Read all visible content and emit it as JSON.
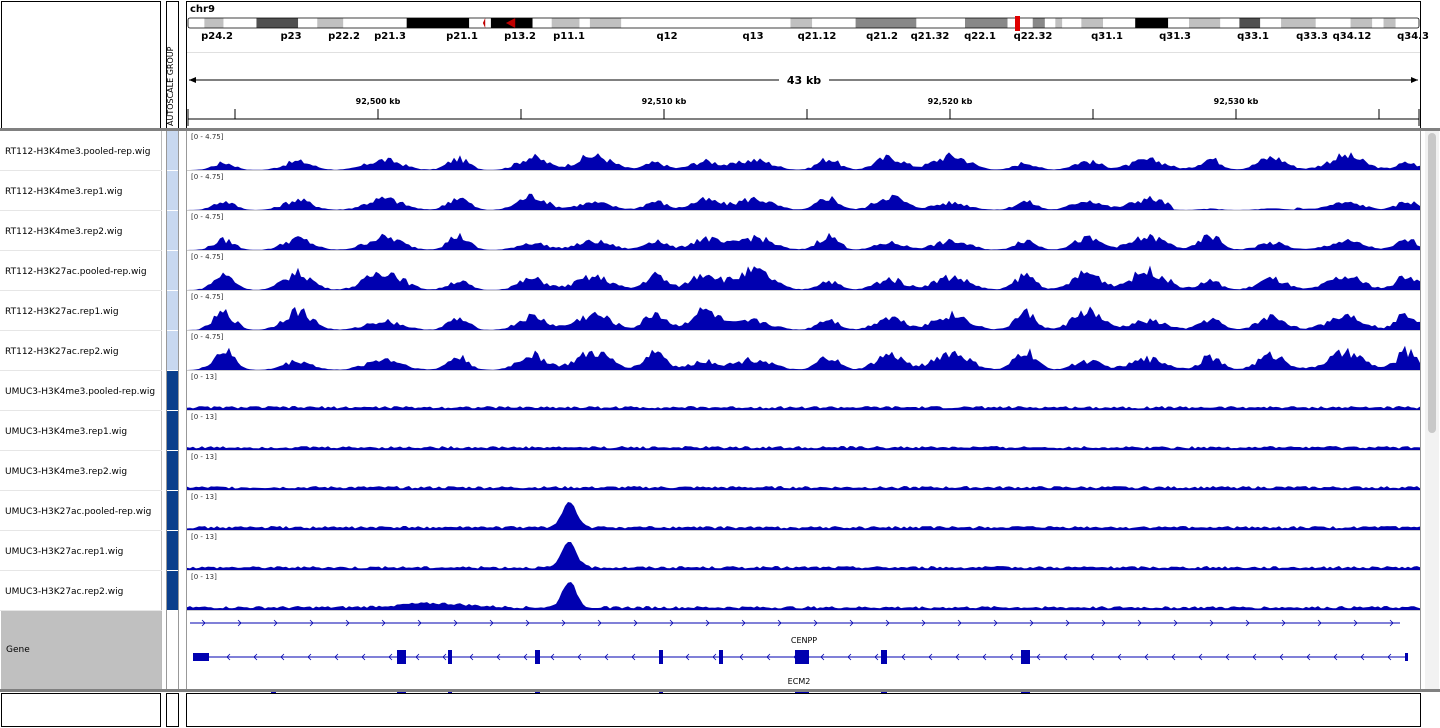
{
  "header": {
    "chromosome": "chr9",
    "autoscale_label": "AUTOSCALE GROUP",
    "span_label": "43 kb",
    "ruler_ticks": [
      "92,500 kb",
      "92,510 kb",
      "92,520 kb",
      "92,530 kb"
    ]
  },
  "ideogram": {
    "bands": [
      {
        "label": "p24.2",
        "stain": "gpos25"
      },
      {
        "label": "p23",
        "stain": "gpos75"
      },
      {
        "label": "p22.2",
        "stain": "gpos25"
      },
      {
        "label": "p21.3",
        "stain": "gpos100"
      },
      {
        "label": "p21.1",
        "stain": "gpos100"
      },
      {
        "label": "p13.2",
        "stain": "gpos25"
      },
      {
        "label": "p11.1",
        "stain": "acen"
      },
      {
        "label": "q12",
        "stain": "gneg"
      },
      {
        "label": "q13",
        "stain": "gpos25"
      },
      {
        "label": "q21.12",
        "stain": "gpos50"
      },
      {
        "label": "q21.2",
        "stain": "gpos50"
      },
      {
        "label": "q21.32",
        "stain": "gpos50"
      },
      {
        "label": "q22.1",
        "stain": "gpos50"
      },
      {
        "label": "q22.32",
        "stain": "gpos25"
      },
      {
        "label": "q31.1",
        "stain": "gpos100"
      },
      {
        "label": "q31.3",
        "stain": "gpos25"
      },
      {
        "label": "q33.1",
        "stain": "gpos75"
      },
      {
        "label": "q33.3",
        "stain": "gpos25"
      },
      {
        "label": "q34.12",
        "stain": "gpos25"
      },
      {
        "label": "q34.3",
        "stain": "gneg"
      }
    ],
    "current_region_color": "#e00000"
  },
  "tracks": [
    {
      "name": "RT112-H3K4me3.pooled-rep.wig",
      "range": "[0 - 4.75]",
      "group": "RT112"
    },
    {
      "name": "RT112-H3K4me3.rep1.wig",
      "range": "[0 - 4.75]",
      "group": "RT112"
    },
    {
      "name": "RT112-H3K4me3.rep2.wig",
      "range": "[0 - 4.75]",
      "group": "RT112"
    },
    {
      "name": "RT112-H3K27ac.pooled-rep.wig",
      "range": "[0 - 4.75]",
      "group": "RT112"
    },
    {
      "name": "RT112-H3K27ac.rep1.wig",
      "range": "[0 - 4.75]",
      "group": "RT112"
    },
    {
      "name": "RT112-H3K27ac.rep2.wig",
      "range": "[0 - 4.75]",
      "group": "RT112"
    },
    {
      "name": "UMUC3-H3K4me3.pooled-rep.wig",
      "range": "[0 - 13]",
      "group": "UMUC3"
    },
    {
      "name": "UMUC3-H3K4me3.rep1.wig",
      "range": "[0 - 13]",
      "group": "UMUC3"
    },
    {
      "name": "UMUC3-H3K4me3.rep2.wig",
      "range": "[0 - 13]",
      "group": "UMUC3"
    },
    {
      "name": "UMUC3-H3K27ac.pooled-rep.wig",
      "range": "[0 - 13]",
      "group": "UMUC3"
    },
    {
      "name": "UMUC3-H3K27ac.rep1.wig",
      "range": "[0 - 13]",
      "group": "UMUC3"
    },
    {
      "name": "UMUC3-H3K27ac.rep2.wig",
      "range": "[0 - 13]",
      "group": "UMUC3"
    }
  ],
  "gene_track": {
    "label": "Gene",
    "genes": [
      "CENPP",
      "ECM2"
    ]
  },
  "colors": {
    "signal": "#0000b0",
    "gene": "#0000b0",
    "group_rt112": "#c8d8f0",
    "group_umuc3": "#0a3f8c",
    "gene_label_bg": "#c0c0c0",
    "panel_border": "#808080"
  }
}
